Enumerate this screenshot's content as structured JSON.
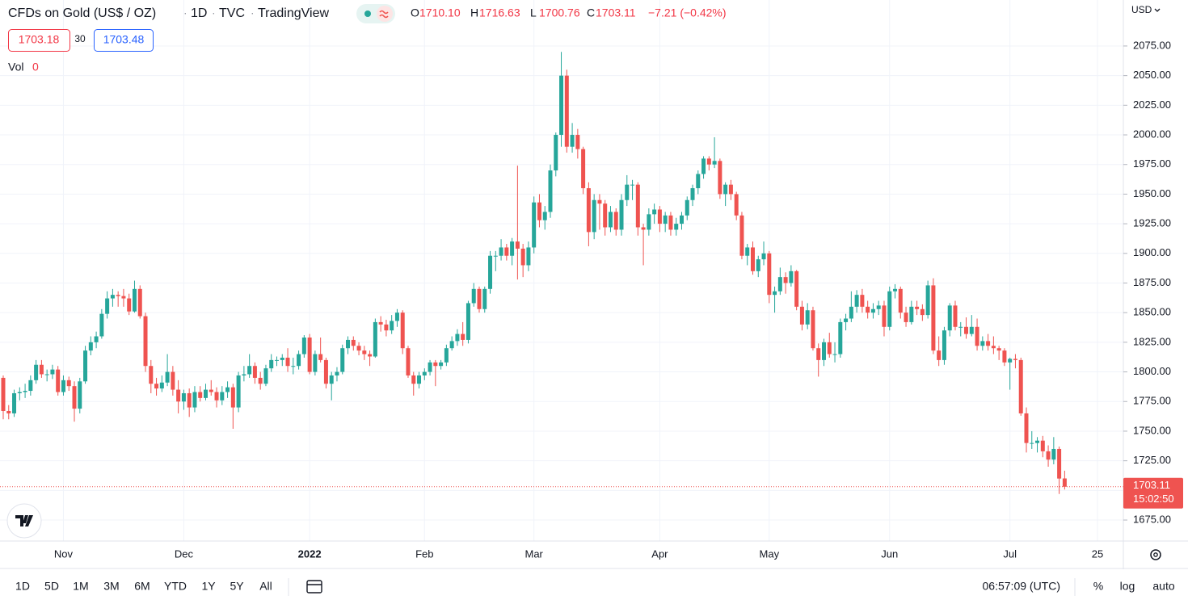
{
  "header": {
    "symbol": "CFDs on Gold (US$ / OZ)",
    "interval": "1D",
    "exchange": "TVC",
    "source": "TradingView",
    "ohlc": [
      {
        "key": "O",
        "value": "1710.10"
      },
      {
        "key": "H",
        "value": "1716.63"
      },
      {
        "key": "L",
        "value": "1700.76"
      },
      {
        "key": "C",
        "value": "1703.11"
      }
    ],
    "change": "−7.21 (−0.42%)"
  },
  "quote": {
    "bid": "1703.18",
    "spread": "30",
    "ask": "1703.48"
  },
  "volume": {
    "label": "Vol",
    "value": "0"
  },
  "currency": "USD",
  "countdown": "15:02:50",
  "ranges": [
    "1D",
    "5D",
    "1M",
    "3M",
    "6M",
    "YTD",
    "1Y",
    "5Y",
    "All"
  ],
  "clock": "06:57:09 (UTC)",
  "scale_buttons": [
    "%",
    "log",
    "auto"
  ],
  "chart_data": {
    "type": "candlestick",
    "up_color": "#26a69a",
    "down_color": "#ef5350",
    "grid": true,
    "ylim": [
      1657.3,
      2113.8
    ],
    "yticks": [
      {
        "value": 1675,
        "label": "1675.00"
      },
      {
        "value": 1700,
        "label": "1700.00"
      },
      {
        "value": 1725,
        "label": "1725.00"
      },
      {
        "value": 1750,
        "label": "1750.00"
      },
      {
        "value": 1775,
        "label": "1775.00"
      },
      {
        "value": 1800,
        "label": "1800.00"
      },
      {
        "value": 1825,
        "label": "1825.00"
      },
      {
        "value": 1850,
        "label": "1850.00"
      },
      {
        "value": 1875,
        "label": "1875.00"
      },
      {
        "value": 1900,
        "label": "1900.00"
      },
      {
        "value": 1925,
        "label": "1925.00"
      },
      {
        "value": 1950,
        "label": "1950.00"
      },
      {
        "value": 1975,
        "label": "1975.00"
      },
      {
        "value": 2000,
        "label": "2000.00"
      },
      {
        "value": 2025,
        "label": "2025.00"
      },
      {
        "value": 2050,
        "label": "2050.00"
      },
      {
        "value": 2075,
        "label": "2075.00"
      }
    ],
    "categories": [
      null,
      null,
      null,
      null,
      null,
      null,
      null,
      null,
      null,
      null,
      null,
      "Nov",
      null,
      null,
      null,
      null,
      null,
      null,
      null,
      null,
      null,
      null,
      null,
      null,
      null,
      null,
      null,
      null,
      null,
      null,
      null,
      null,
      null,
      "Dec",
      null,
      null,
      null,
      null,
      null,
      null,
      null,
      null,
      null,
      null,
      null,
      null,
      null,
      null,
      null,
      null,
      null,
      null,
      null,
      null,
      null,
      null,
      "2022",
      null,
      null,
      null,
      null,
      null,
      null,
      null,
      null,
      null,
      null,
      null,
      null,
      null,
      null,
      null,
      null,
      null,
      null,
      null,
      null,
      "Feb",
      null,
      null,
      null,
      null,
      null,
      null,
      null,
      null,
      null,
      null,
      null,
      null,
      null,
      null,
      null,
      null,
      null,
      null,
      null,
      "Mar",
      null,
      null,
      null,
      null,
      null,
      null,
      null,
      null,
      null,
      null,
      null,
      null,
      null,
      null,
      null,
      null,
      null,
      null,
      null,
      null,
      null,
      null,
      "Apr",
      null,
      null,
      null,
      null,
      null,
      null,
      null,
      null,
      null,
      null,
      null,
      null,
      null,
      null,
      null,
      null,
      null,
      null,
      null,
      "May",
      null,
      null,
      null,
      null,
      null,
      null,
      null,
      null,
      null,
      null,
      null,
      null,
      null,
      null,
      null,
      null,
      null,
      null,
      null,
      null,
      null,
      "Jun",
      null,
      null,
      null,
      null,
      null,
      null,
      null,
      null,
      null,
      null,
      null,
      null,
      null,
      null,
      null,
      null,
      null,
      null,
      null,
      null,
      null,
      "Jul",
      null,
      null,
      null,
      null,
      null,
      null,
      null,
      null,
      null,
      null,
      null,
      null,
      null,
      null,
      null,
      "25"
    ],
    "open": [
      1795,
      1767,
      1765,
      1782,
      1783,
      1784,
      1793,
      1806,
      1798,
      1798,
      1802,
      1783,
      1793,
      1788,
      1769,
      1792,
      1818,
      1825,
      1830,
      1849,
      1862,
      1865,
      1864,
      1862,
      1851,
      1870,
      1847,
      1805,
      1790,
      1786,
      1791,
      1800,
      1785,
      1775,
      1782,
      1770,
      1783,
      1778,
      1785,
      1783,
      1776,
      1783,
      1787,
      1770,
      1797,
      1798,
      1805,
      1795,
      1790,
      1803,
      1810,
      1810,
      1812,
      1805,
      1805,
      1815,
      1829,
      1800,
      1815,
      1810,
      1790,
      1797,
      1800,
      1820,
      1827,
      1822,
      1818,
      1815,
      1813,
      1842,
      1840,
      1835,
      1843,
      1850,
      1820,
      1797,
      1790,
      1797,
      1800,
      1808,
      1805,
      1808,
      1820,
      1826,
      1832,
      1827,
      1858,
      1870,
      1853,
      1870,
      1898,
      1898,
      1905,
      1898,
      1910,
      1904,
      1890,
      1905,
      1943,
      1928,
      1935,
      1970,
      2000,
      2050,
      1990,
      2000,
      1988,
      1955,
      1918,
      1945,
      1942,
      1922,
      1935,
      1920,
      1945,
      1958,
      1958,
      1922,
      1920,
      1933,
      1937,
      1925,
      1932,
      1920,
      1925,
      1932,
      1945,
      1955,
      1967,
      1980,
      1975,
      1978,
      1950,
      1958,
      1950,
      1932,
      1898,
      1905,
      1885,
      1895,
      1900,
      1865,
      1868,
      1880,
      1875,
      1885,
      1855,
      1840,
      1852,
      1820,
      1810,
      1825,
      1815,
      1815,
      1842,
      1845,
      1855,
      1865,
      1855,
      1850,
      1853,
      1856,
      1838,
      1868,
      1870,
      1850,
      1842,
      1855,
      1853,
      1848,
      1873,
      1818,
      1810,
      1835,
      1856,
      1838,
      1838,
      1832,
      1838,
      1822,
      1826,
      1822,
      1820,
      1818,
      1808,
      1811,
      1810,
      1765,
      1740,
      1740,
      1742,
      1733,
      1726,
      1735,
      1710.1,
      null,
      null,
      null,
      null,
      null,
      null
    ],
    "high": [
      1797,
      1772,
      1785,
      1787,
      1790,
      1797,
      1810,
      1810,
      1802,
      1806,
      1805,
      1797,
      1796,
      1792,
      1795,
      1822,
      1830,
      1834,
      1853,
      1868,
      1870,
      1868,
      1870,
      1866,
      1877,
      1873,
      1850,
      1810,
      1795,
      1797,
      1815,
      1805,
      1793,
      1785,
      1786,
      1788,
      1788,
      1790,
      1793,
      1787,
      1788,
      1792,
      1790,
      1800,
      1805,
      1815,
      1808,
      1800,
      1806,
      1815,
      1813,
      1815,
      1820,
      1812,
      1818,
      1831,
      1832,
      1818,
      1829,
      1812,
      1800,
      1804,
      1823,
      1830,
      1830,
      1825,
      1822,
      1818,
      1845,
      1847,
      1844,
      1848,
      1853,
      1852,
      1822,
      1800,
      1800,
      1803,
      1810,
      1810,
      1810,
      1823,
      1830,
      1836,
      1842,
      1860,
      1875,
      1872,
      1872,
      1902,
      1902,
      1912,
      1908,
      1913,
      1974,
      1908,
      1910,
      1948,
      1950,
      1940,
      1975,
      2002,
      2070,
      2055,
      2010,
      2005,
      1990,
      1960,
      1950,
      1950,
      1945,
      1940,
      1938,
      1950,
      1966,
      1962,
      1960,
      1925,
      1938,
      1942,
      1940,
      1935,
      1935,
      1930,
      1935,
      1948,
      1958,
      1970,
      1982,
      1982,
      1998,
      1980,
      1960,
      1962,
      1952,
      1935,
      1908,
      1910,
      1898,
      1910,
      1902,
      1872,
      1888,
      1884,
      1890,
      1886,
      1860,
      1858,
      1855,
      1824,
      1828,
      1833,
      1825,
      1845,
      1849,
      1868,
      1869,
      1870,
      1860,
      1858,
      1860,
      1860,
      1872,
      1874,
      1872,
      1855,
      1860,
      1860,
      1857,
      1877,
      1879,
      1830,
      1838,
      1858,
      1860,
      1842,
      1846,
      1848,
      1845,
      1830,
      1832,
      1830,
      1822,
      1820,
      1812,
      1815,
      1812,
      1770,
      1750,
      1745,
      1746,
      1738,
      1745,
      1737,
      1716.63,
      null,
      null,
      null,
      null,
      null,
      null
    ],
    "low": [
      1760,
      1760,
      1762,
      1776,
      1778,
      1780,
      1790,
      1795,
      1792,
      1794,
      1780,
      1780,
      1784,
      1758,
      1765,
      1790,
      1814,
      1820,
      1828,
      1845,
      1855,
      1855,
      1855,
      1848,
      1850,
      1845,
      1800,
      1782,
      1780,
      1783,
      1788,
      1780,
      1765,
      1768,
      1762,
      1766,
      1775,
      1776,
      1780,
      1770,
      1772,
      1778,
      1752,
      1766,
      1792,
      1795,
      1790,
      1785,
      1788,
      1800,
      1805,
      1805,
      1800,
      1798,
      1802,
      1812,
      1798,
      1797,
      1808,
      1786,
      1776,
      1792,
      1798,
      1815,
      1818,
      1814,
      1810,
      1805,
      1812,
      1834,
      1830,
      1832,
      1838,
      1815,
      1795,
      1780,
      1786,
      1793,
      1797,
      1788,
      1802,
      1805,
      1818,
      1822,
      1822,
      1824,
      1855,
      1850,
      1850,
      1866,
      1885,
      1894,
      1894,
      1890,
      1878,
      1880,
      1885,
      1900,
      1922,
      1920,
      1930,
      1965,
      1990,
      1985,
      1985,
      1980,
      1950,
      1906,
      1912,
      1920,
      1915,
      1918,
      1915,
      1915,
      1940,
      1945,
      1915,
      1890,
      1915,
      1925,
      1918,
      1918,
      1915,
      1915,
      1920,
      1928,
      1940,
      1950,
      1963,
      1970,
      1972,
      1946,
      1940,
      1945,
      1928,
      1895,
      1890,
      1882,
      1880,
      1890,
      1858,
      1850,
      1865,
      1866,
      1872,
      1852,
      1835,
      1836,
      1818,
      1796,
      1805,
      1812,
      1808,
      1812,
      1835,
      1842,
      1850,
      1850,
      1845,
      1845,
      1848,
      1830,
      1835,
      1862,
      1845,
      1838,
      1840,
      1848,
      1843,
      1845,
      1815,
      1805,
      1806,
      1830,
      1835,
      1830,
      1828,
      1830,
      1818,
      1818,
      1818,
      1815,
      1810,
      1805,
      1785,
      1803,
      1763,
      1732,
      1735,
      1732,
      1728,
      1720,
      1722,
      1697,
      1700.76,
      null,
      null,
      null,
      null,
      null,
      null
    ],
    "close": [
      1767,
      1765,
      1782,
      1783,
      1784,
      1793,
      1806,
      1798,
      1798,
      1802,
      1783,
      1793,
      1788,
      1769,
      1792,
      1818,
      1825,
      1830,
      1849,
      1862,
      1865,
      1864,
      1862,
      1851,
      1870,
      1847,
      1805,
      1790,
      1786,
      1791,
      1800,
      1785,
      1775,
      1782,
      1770,
      1783,
      1778,
      1785,
      1783,
      1776,
      1783,
      1787,
      1770,
      1797,
      1798,
      1805,
      1795,
      1790,
      1803,
      1810,
      1810,
      1812,
      1805,
      1805,
      1815,
      1829,
      1800,
      1815,
      1810,
      1790,
      1797,
      1800,
      1820,
      1827,
      1822,
      1818,
      1815,
      1813,
      1842,
      1840,
      1835,
      1843,
      1850,
      1820,
      1797,
      1790,
      1797,
      1800,
      1808,
      1805,
      1808,
      1820,
      1826,
      1832,
      1827,
      1858,
      1870,
      1853,
      1870,
      1898,
      1898,
      1905,
      1898,
      1910,
      1904,
      1890,
      1905,
      1943,
      1928,
      1935,
      1970,
      2000,
      2050,
      1990,
      2000,
      1988,
      1955,
      1918,
      1945,
      1942,
      1922,
      1935,
      1920,
      1945,
      1958,
      1958,
      1922,
      1920,
      1933,
      1937,
      1925,
      1932,
      1920,
      1925,
      1932,
      1945,
      1955,
      1967,
      1980,
      1975,
      1978,
      1950,
      1958,
      1950,
      1932,
      1898,
      1905,
      1885,
      1895,
      1900,
      1865,
      1868,
      1880,
      1875,
      1885,
      1855,
      1840,
      1852,
      1820,
      1810,
      1825,
      1815,
      1815,
      1842,
      1845,
      1855,
      1865,
      1855,
      1850,
      1853,
      1856,
      1838,
      1868,
      1870,
      1850,
      1842,
      1855,
      1853,
      1848,
      1873,
      1818,
      1810,
      1835,
      1856,
      1838,
      1838,
      1832,
      1838,
      1822,
      1826,
      1822,
      1820,
      1818,
      1808,
      1811,
      1810,
      1765,
      1740,
      1740,
      1742,
      1733,
      1726,
      1735,
      1710,
      1703.11,
      null,
      null,
      null,
      null,
      null,
      null
    ]
  }
}
